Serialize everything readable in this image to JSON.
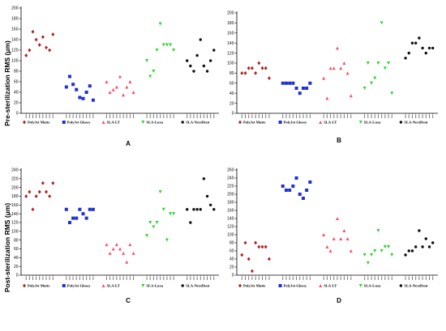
{
  "ylabels": {
    "top": "Pre-sterilization RMS (μm)",
    "bottom": "Post-sterilization RMS (μm)"
  },
  "legend_colors": {
    "PolyJet Matte": "#b22222",
    "PolyJet Glossy": "#1f2fd6",
    "SLA-LT": "#ff4d6a",
    "SLA-Luxa": "#2ad62a",
    "SLA-NextDent": "#111111"
  },
  "chart_data": [
    {
      "type": "scatter",
      "panel": "A",
      "ylabel": "Pre-sterilization RMS (μm)",
      "ylim": [
        0,
        200
      ],
      "yticks": [
        0,
        20,
        40,
        60,
        80,
        100,
        120,
        140,
        160,
        180,
        200
      ],
      "grid": false,
      "legend_placement": "bottom",
      "series": [
        {
          "name": "PolyJet Matte",
          "marker": "diamond",
          "values": [
            110,
            120,
            155,
            140,
            130,
            145,
            125,
            120,
            150
          ]
        },
        {
          "name": "PolyJet Glossy",
          "marker": "square",
          "values": [
            50,
            70,
            55,
            45,
            30,
            28,
            40,
            52,
            25
          ]
        },
        {
          "name": "SLA-LT",
          "marker": "triangle-up",
          "values": [
            60,
            40,
            45,
            50,
            70,
            35,
            50,
            60,
            40
          ]
        },
        {
          "name": "SLA-Luxa",
          "marker": "triangle-down",
          "values": [
            100,
            70,
            80,
            120,
            170,
            130,
            130,
            130,
            120
          ]
        },
        {
          "name": "SLA-NextDent",
          "marker": "circle",
          "values": [
            100,
            90,
            80,
            110,
            140,
            90,
            80,
            100,
            120
          ]
        }
      ]
    },
    {
      "type": "scatter",
      "panel": "B",
      "ylim": [
        0,
        200
      ],
      "yticks": [
        0,
        20,
        40,
        60,
        80,
        100,
        120,
        140,
        160,
        180,
        200
      ],
      "grid": false,
      "legend_placement": "bottom",
      "series": [
        {
          "name": "PolyJet Matte",
          "marker": "diamond",
          "values": [
            80,
            80,
            90,
            90,
            80,
            100,
            90,
            90,
            70
          ]
        },
        {
          "name": "PolyJet Glossy",
          "marker": "square",
          "values": [
            60,
            60,
            60,
            60,
            50,
            40,
            50,
            50,
            60
          ]
        },
        {
          "name": "SLA-LT",
          "marker": "triangle-up",
          "values": [
            70,
            30,
            90,
            90,
            130,
            90,
            100,
            80,
            35
          ]
        },
        {
          "name": "SLA-Luxa",
          "marker": "triangle-down",
          "values": [
            50,
            100,
            60,
            70,
            100,
            180,
            90,
            100,
            40
          ]
        },
        {
          "name": "SLA-NextDent",
          "marker": "circle",
          "values": [
            110,
            120,
            140,
            140,
            150,
            130,
            120,
            130,
            130
          ]
        }
      ]
    },
    {
      "type": "scatter",
      "panel": "C",
      "ylabel": "Post-sterilization RMS (μm)",
      "ylim": [
        0,
        240
      ],
      "yticks": [
        0,
        20,
        40,
        60,
        80,
        100,
        120,
        140,
        160,
        180,
        200,
        220,
        240
      ],
      "grid": false,
      "legend_placement": "bottom",
      "series": [
        {
          "name": "PolyJet Matte",
          "marker": "diamond",
          "values": [
            180,
            190,
            150,
            180,
            190,
            210,
            190,
            180,
            210
          ]
        },
        {
          "name": "PolyJet Glossy",
          "marker": "square",
          "values": [
            150,
            120,
            130,
            130,
            150,
            140,
            130,
            150,
            150
          ]
        },
        {
          "name": "SLA-LT",
          "marker": "triangle-up",
          "values": [
            70,
            50,
            60,
            70,
            60,
            50,
            30,
            70,
            50
          ]
        },
        {
          "name": "SLA-Luxa",
          "marker": "triangle-down",
          "values": [
            90,
            120,
            110,
            120,
            190,
            150,
            80,
            140,
            140
          ]
        },
        {
          "name": "SLA-NextDent",
          "marker": "circle",
          "values": [
            150,
            120,
            150,
            150,
            150,
            220,
            180,
            160,
            150
          ]
        }
      ]
    },
    {
      "type": "scatter",
      "panel": "D",
      "ylim": [
        0,
        260
      ],
      "yticks": [
        0,
        20,
        40,
        60,
        80,
        100,
        120,
        140,
        160,
        180,
        200,
        220,
        240,
        260
      ],
      "grid": false,
      "legend_placement": "bottom",
      "series": [
        {
          "name": "PolyJet Matte",
          "marker": "diamond",
          "values": [
            50,
            80,
            40,
            10,
            80,
            70,
            70,
            70,
            40
          ]
        },
        {
          "name": "PolyJet Glossy",
          "marker": "square",
          "values": [
            220,
            210,
            210,
            220,
            240,
            200,
            190,
            210,
            230
          ]
        },
        {
          "name": "SLA-LT",
          "marker": "triangle-up",
          "values": [
            100,
            70,
            60,
            90,
            140,
            90,
            110,
            90,
            60
          ]
        },
        {
          "name": "SLA-Luxa",
          "marker": "triangle-down",
          "values": [
            50,
            30,
            50,
            60,
            110,
            60,
            70,
            70,
            50
          ]
        },
        {
          "name": "SLA-NextDent",
          "marker": "circle",
          "values": [
            50,
            60,
            60,
            70,
            110,
            70,
            90,
            70,
            80
          ]
        }
      ]
    }
  ]
}
